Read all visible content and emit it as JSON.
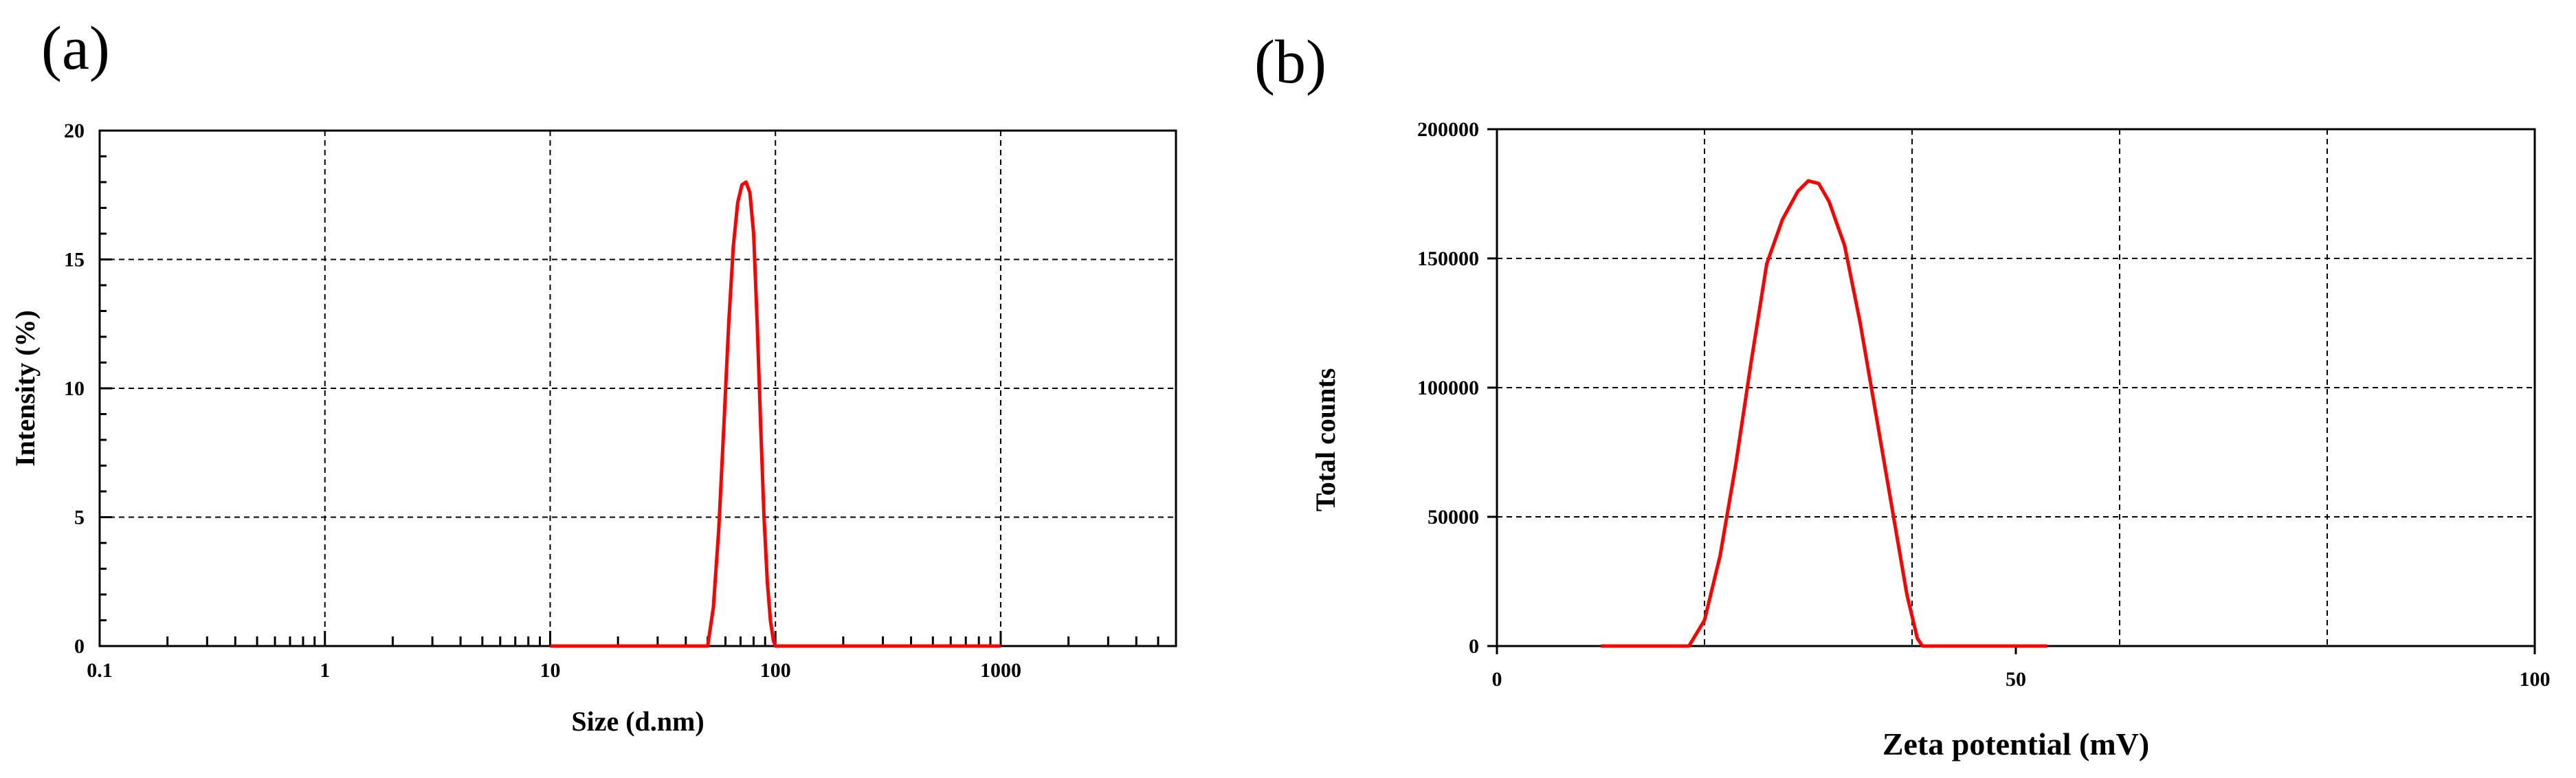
{
  "chart_data": [
    {
      "panel_label": "(a)",
      "type": "line",
      "xlabel": "Size (d.nm)",
      "ylabel": "Intensity (%)",
      "xscale": "log",
      "xlim": [
        0.1,
        6000
      ],
      "ylim": [
        0,
        20
      ],
      "x_ticks": [
        0.1,
        1,
        10,
        100,
        1000
      ],
      "x_tick_labels": [
        "0.1",
        "1",
        "10",
        "100",
        "1000"
      ],
      "y_ticks": [
        0,
        5,
        10,
        15,
        20
      ],
      "y_tick_labels": [
        "0",
        "5",
        "10",
        "15",
        "20"
      ],
      "grid": true,
      "series": [
        {
          "color": "#ff0000",
          "x": [
            10,
            20,
            40,
            50,
            53,
            56,
            59,
            62,
            65,
            68,
            71,
            74,
            77,
            80,
            83,
            86,
            89,
            92,
            95,
            98,
            100,
            200,
            500,
            1000
          ],
          "y": [
            0,
            0,
            0,
            0,
            1.5,
            4.5,
            8.5,
            12.5,
            15.5,
            17.2,
            17.9,
            18.0,
            17.6,
            16.0,
            12.5,
            8.5,
            5.0,
            2.5,
            1.0,
            0.2,
            0,
            0,
            0,
            0
          ]
        }
      ]
    },
    {
      "panel_label": "(b)",
      "type": "line",
      "xlabel": "Zeta potential (mV)",
      "ylabel": "Total counts",
      "xlim": [
        0,
        100
      ],
      "ylim": [
        0,
        200000
      ],
      "x_ticks": [
        0,
        50,
        100
      ],
      "x_tick_labels": [
        "0",
        "50",
        "100"
      ],
      "x_grid": [
        20,
        40,
        60,
        80
      ],
      "y_ticks": [
        0,
        50000,
        100000,
        150000,
        200000
      ],
      "y_tick_labels": [
        "0",
        "50000",
        "100000",
        "150000",
        "200000"
      ],
      "grid": true,
      "series": [
        {
          "color": "#ff0000",
          "x": [
            10,
            18.5,
            20,
            21.5,
            23,
            24.5,
            26,
            27.5,
            29,
            30,
            31,
            32,
            33.5,
            35,
            36.5,
            38,
            39.5,
            40.5,
            41,
            43,
            53
          ],
          "y": [
            0,
            0,
            10000,
            35000,
            70000,
            110000,
            148000,
            165000,
            176000,
            180000,
            179000,
            172000,
            155000,
            125000,
            90000,
            55000,
            20000,
            3000,
            0,
            0,
            0
          ]
        }
      ]
    }
  ]
}
